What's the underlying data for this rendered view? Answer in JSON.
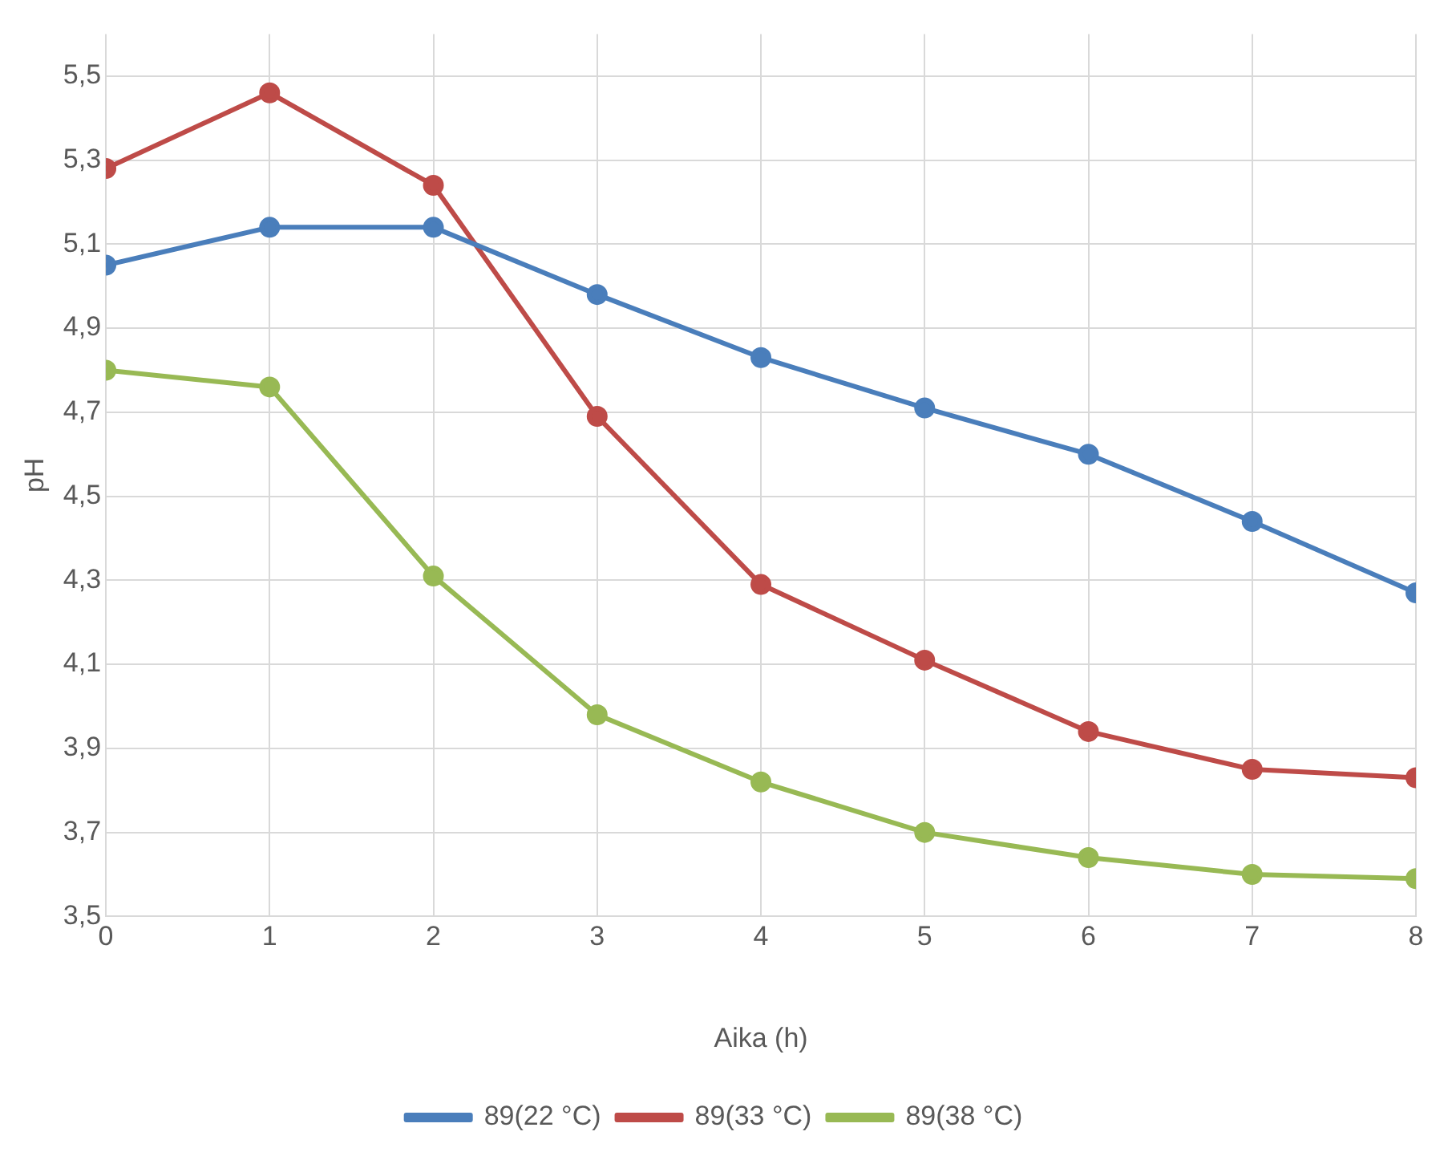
{
  "chart_data": {
    "type": "line",
    "xlabel": "Aika (h)",
    "ylabel": "pH",
    "x": [
      0,
      1,
      2,
      3,
      4,
      5,
      6,
      7,
      8
    ],
    "series": [
      {
        "name": "89(22 °C)",
        "color": "#4a7ebb",
        "values": [
          5.05,
          5.14,
          5.14,
          4.98,
          4.83,
          4.71,
          4.6,
          4.44,
          4.27
        ]
      },
      {
        "name": "89(33 °C)",
        "color": "#be4b48",
        "values": [
          5.28,
          5.46,
          5.24,
          4.69,
          4.29,
          4.11,
          3.94,
          3.85,
          3.83
        ]
      },
      {
        "name": "89(38 °C)",
        "color": "#98b954",
        "values": [
          4.8,
          4.76,
          4.31,
          3.98,
          3.82,
          3.7,
          3.64,
          3.6,
          3.59
        ]
      }
    ],
    "xlim": [
      0,
      8
    ],
    "xticks": [
      0,
      1,
      2,
      3,
      4,
      5,
      6,
      7,
      8
    ],
    "ylim": [
      3.5,
      5.6
    ],
    "yticks": [
      {
        "value": 3.5,
        "label": "3,5"
      },
      {
        "value": 3.7,
        "label": "3,7"
      },
      {
        "value": 3.9,
        "label": "3,9"
      },
      {
        "value": 4.1,
        "label": "4,1"
      },
      {
        "value": 4.3,
        "label": "4,3"
      },
      {
        "value": 4.5,
        "label": "4,5"
      },
      {
        "value": 4.7,
        "label": "4,7"
      },
      {
        "value": 4.9,
        "label": "4,9"
      },
      {
        "value": 5.1,
        "label": "5,1"
      },
      {
        "value": 5.3,
        "label": "5,3"
      },
      {
        "value": 5.5,
        "label": "5,5"
      }
    ],
    "grid": true,
    "legend": "bottom",
    "marker": "circle",
    "line_style": "solid"
  }
}
